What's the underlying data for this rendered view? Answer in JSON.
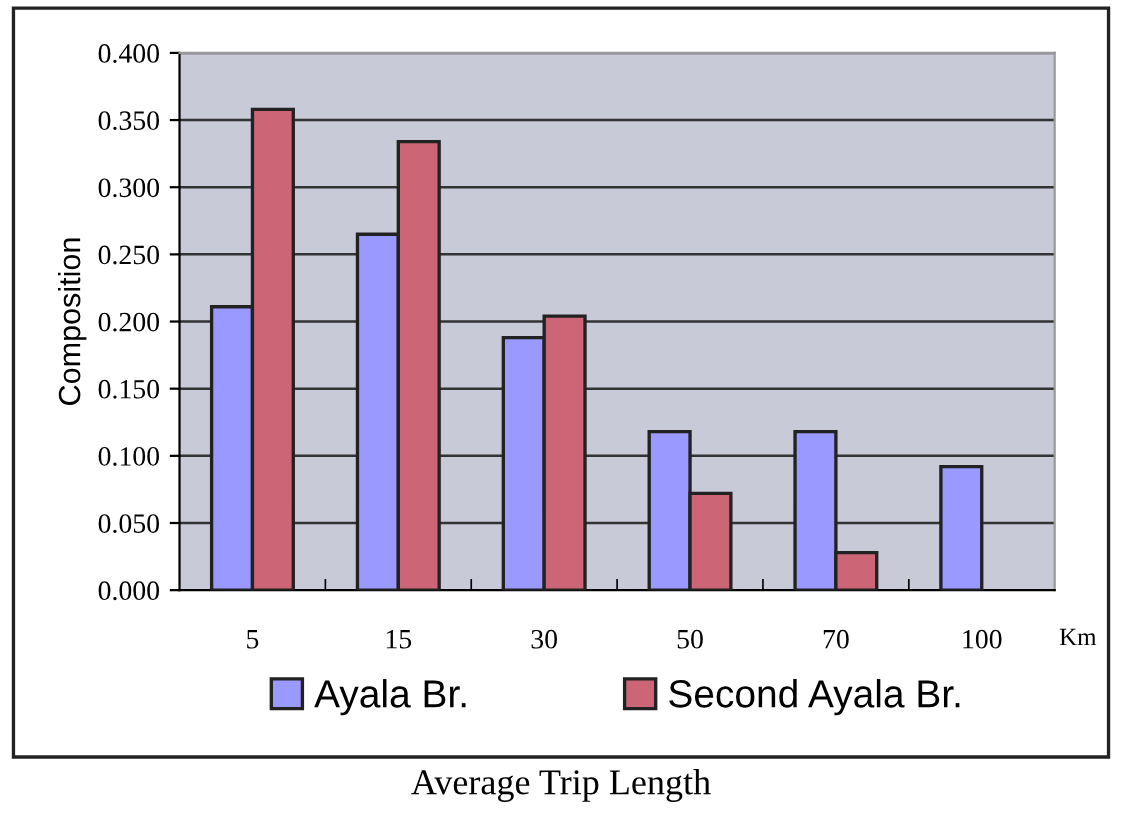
{
  "chart_data": {
    "type": "bar",
    "ylabel": "Composition",
    "xlabel": "Km",
    "categories": [
      "5",
      "15",
      "30",
      "50",
      "70",
      "100"
    ],
    "series": [
      {
        "name": "Ayala Br.",
        "color": "#9999ff",
        "values": [
          0.211,
          0.265,
          0.188,
          0.118,
          0.118,
          0.092
        ]
      },
      {
        "name": "Second Ayala Br.",
        "color": "#cc6677",
        "values": [
          0.358,
          0.334,
          0.204,
          0.072,
          0.028,
          null
        ]
      }
    ],
    "ylim": [
      0,
      0.4
    ],
    "yticks": [
      {
        "value": 0,
        "label": "0.000"
      },
      {
        "value": 0.05,
        "label": "0.050"
      },
      {
        "value": 0.1,
        "label": "0.100"
      },
      {
        "value": 0.15,
        "label": "0.150"
      },
      {
        "value": 0.2,
        "label": "0.200"
      },
      {
        "value": 0.25,
        "label": "0.250"
      },
      {
        "value": 0.3,
        "label": "0.300"
      },
      {
        "value": 0.35,
        "label": "0.350"
      },
      {
        "value": 0.4,
        "label": "0.400"
      }
    ],
    "grid": "y",
    "legend": "bottom",
    "annotations": [
      "Average Trip Length"
    ]
  }
}
